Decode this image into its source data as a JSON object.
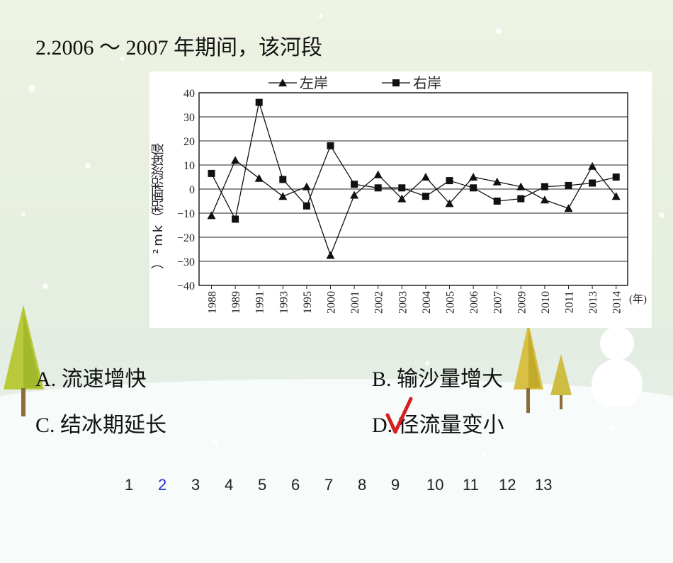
{
  "question": "2.2006 ～ 2007 年期间，该河段",
  "options": [
    {
      "label": "A. 流速增快"
    },
    {
      "label": "B. 输沙量增大"
    },
    {
      "label": "C. 结冰期延长"
    },
    {
      "label": "D. 径流量变小"
    }
  ],
  "answer_mark": "√",
  "pagination": {
    "pages": [
      "1",
      "2",
      "3",
      "4",
      "5",
      "6",
      "7",
      "8",
      "9",
      "10",
      "11",
      "12",
      "13"
    ],
    "current": "2"
  },
  "colors": {
    "current_page": "#2233cc",
    "check_mark": "#d42020"
  },
  "chart_data": {
    "type": "line",
    "categories": [
      "1988",
      "1989",
      "1991",
      "1993",
      "1995",
      "2000",
      "2001",
      "2002",
      "2003",
      "2004",
      "2005",
      "2006",
      "2007",
      "2009",
      "2010",
      "2011",
      "2013",
      "2014"
    ],
    "series": [
      {
        "name": "左岸",
        "marker": "triangle",
        "values": [
          -11,
          12,
          4.5,
          -3,
          1,
          -27.5,
          -2.5,
          6,
          -4,
          5,
          -6,
          5,
          3,
          1,
          -4.5,
          -8,
          9.5,
          -3
        ]
      },
      {
        "name": "右岸",
        "marker": "square",
        "values": [
          6.5,
          -12.5,
          36,
          4,
          -7,
          18,
          2,
          0.5,
          0.5,
          -3,
          3.5,
          0.5,
          -5,
          -4,
          1,
          1.5,
          2.5,
          5
        ]
      }
    ],
    "ylabel": "侵蚀淤积面积（km²）",
    "x_unit": "(年)",
    "ylim": [
      -40,
      40
    ],
    "yticks": [
      "40",
      "30",
      "20",
      "10",
      "0",
      "−10",
      "−20",
      "−30",
      "−40"
    ],
    "grid": true,
    "legend_position": "top"
  }
}
